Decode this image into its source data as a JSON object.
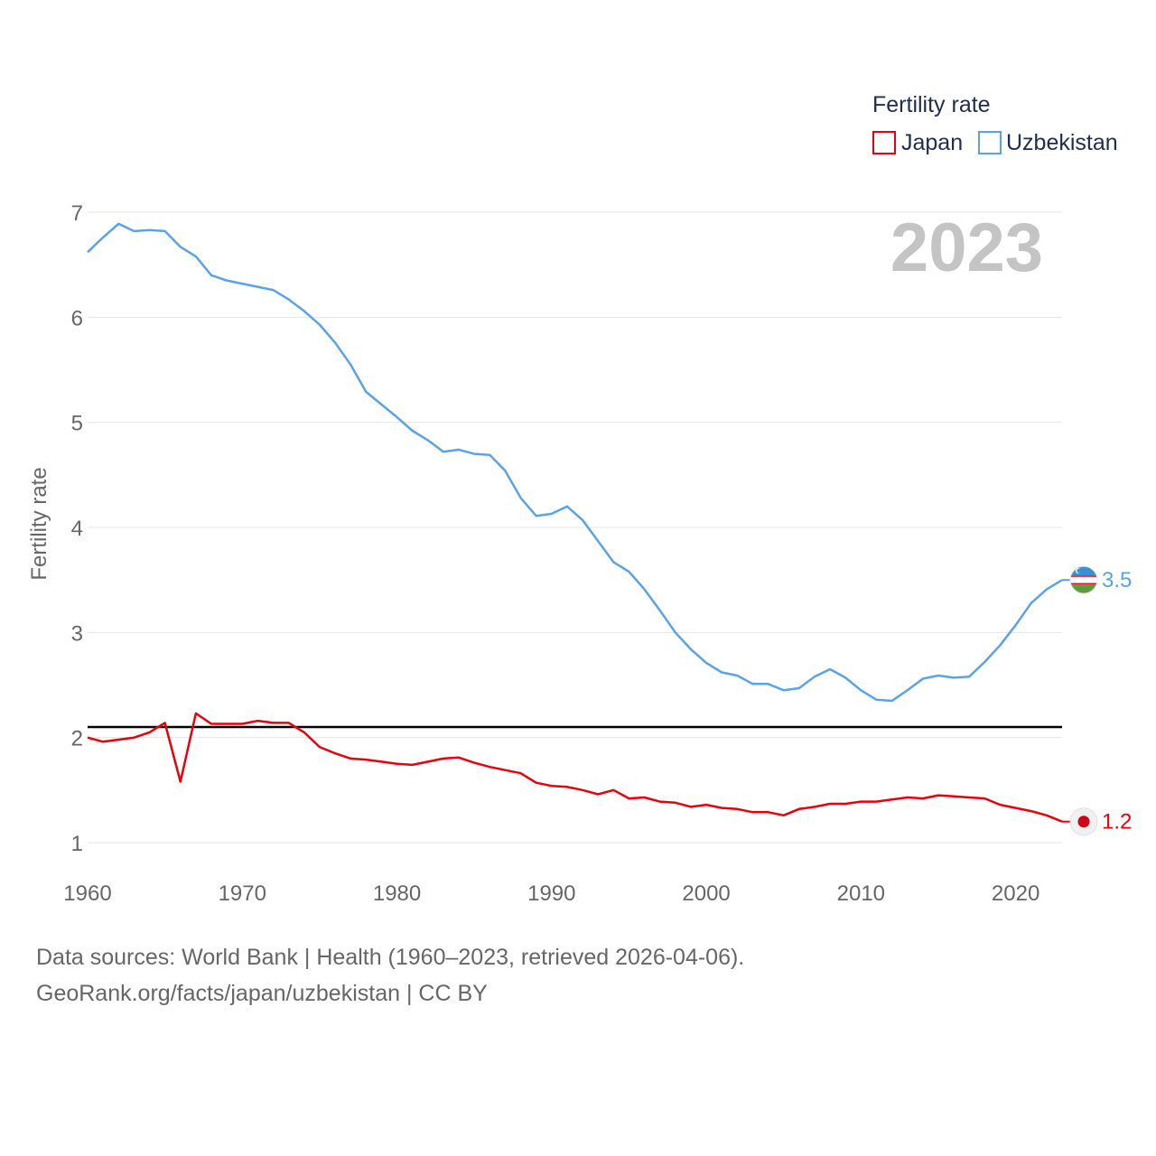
{
  "chart_data": {
    "type": "line",
    "legend": {
      "title": "Fertility rate",
      "position": "top-right"
    },
    "ylabel": "Fertility rate",
    "xlabel": "",
    "year_label": "2023",
    "xlim": [
      1960,
      2023
    ],
    "ylim": [
      0.9,
      7.2
    ],
    "x_ticks": [
      1960,
      1970,
      1980,
      1990,
      2000,
      2010,
      2020
    ],
    "y_ticks": [
      1,
      2,
      3,
      4,
      5,
      6,
      7
    ],
    "reference_line": {
      "y": 2.1,
      "color": "#000000"
    },
    "x": [
      1960,
      1961,
      1962,
      1963,
      1964,
      1965,
      1966,
      1967,
      1968,
      1969,
      1970,
      1971,
      1972,
      1973,
      1974,
      1975,
      1976,
      1977,
      1978,
      1979,
      1980,
      1981,
      1982,
      1983,
      1984,
      1985,
      1986,
      1987,
      1988,
      1989,
      1990,
      1991,
      1992,
      1993,
      1994,
      1995,
      1996,
      1997,
      1998,
      1999,
      2000,
      2001,
      2002,
      2003,
      2004,
      2005,
      2006,
      2007,
      2008,
      2009,
      2010,
      2011,
      2012,
      2013,
      2014,
      2015,
      2016,
      2017,
      2018,
      2019,
      2020,
      2021,
      2022,
      2023
    ],
    "series": [
      {
        "name": "Japan",
        "color": "#e8000b",
        "end_label": "1.2",
        "flag": "japan-flag-icon",
        "values": [
          2.0,
          1.96,
          1.98,
          2.0,
          2.05,
          2.14,
          1.58,
          2.23,
          2.13,
          2.13,
          2.13,
          2.16,
          2.14,
          2.14,
          2.05,
          1.91,
          1.85,
          1.8,
          1.79,
          1.77,
          1.75,
          1.74,
          1.77,
          1.8,
          1.81,
          1.76,
          1.72,
          1.69,
          1.66,
          1.57,
          1.54,
          1.53,
          1.5,
          1.46,
          1.5,
          1.42,
          1.43,
          1.39,
          1.38,
          1.34,
          1.36,
          1.33,
          1.32,
          1.29,
          1.29,
          1.26,
          1.32,
          1.34,
          1.37,
          1.37,
          1.39,
          1.39,
          1.41,
          1.43,
          1.42,
          1.45,
          1.44,
          1.43,
          1.42,
          1.36,
          1.33,
          1.3,
          1.26,
          1.2
        ]
      },
      {
        "name": "Uzbekistan",
        "color": "#5aa3e6",
        "end_label": "3.5",
        "flag": "uzbekistan-flag-icon",
        "values": [
          6.62,
          6.76,
          6.89,
          6.82,
          6.83,
          6.82,
          6.67,
          6.58,
          6.4,
          6.35,
          6.32,
          6.29,
          6.26,
          6.17,
          6.06,
          5.93,
          5.76,
          5.55,
          5.29,
          5.17,
          5.05,
          4.92,
          4.83,
          4.72,
          4.74,
          4.7,
          4.69,
          4.54,
          4.28,
          4.11,
          4.13,
          4.2,
          4.07,
          3.87,
          3.67,
          3.58,
          3.41,
          3.21,
          3.0,
          2.84,
          2.71,
          2.62,
          2.59,
          2.51,
          2.51,
          2.45,
          2.47,
          2.58,
          2.65,
          2.57,
          2.45,
          2.36,
          2.35,
          2.45,
          2.56,
          2.59,
          2.57,
          2.58,
          2.72,
          2.88,
          3.07,
          3.28,
          3.41,
          3.5
        ]
      }
    ]
  },
  "source": {
    "line1": "Data sources: World Bank | Health (1960–2023, retrieved 2026-04-06).",
    "line2": "GeoRank.org/facts/japan/uzbekistan | CC BY"
  }
}
